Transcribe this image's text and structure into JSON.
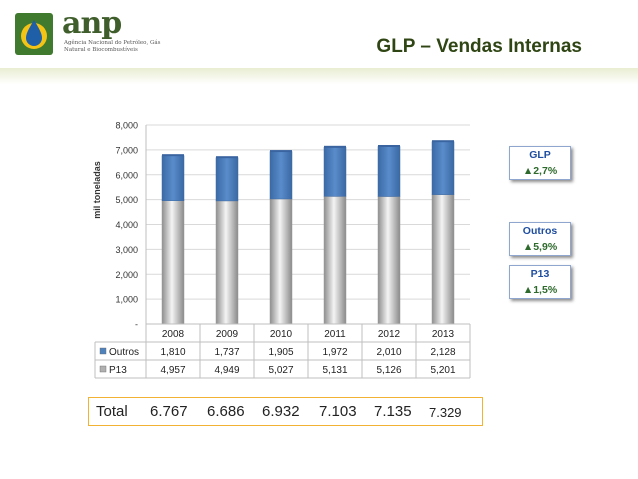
{
  "header": {
    "title": "GLP – Vendas Internas",
    "logo_word": "anp",
    "logo_sub": "Agência Nacional do Petróleo, Gás Natural e Biocombustíveis"
  },
  "colors": {
    "outros": "#4f81bd",
    "p13": "#bfbfbf",
    "title": "#2f4513",
    "accent_border": "#f2b233"
  },
  "chart_data": {
    "type": "bar",
    "stacked": true,
    "ylabel": "mil toneladas",
    "ylim": [
      0,
      8000
    ],
    "yticks": [
      0,
      1000,
      2000,
      3000,
      4000,
      5000,
      6000,
      7000,
      8000
    ],
    "ytick_labels": [
      "-",
      "1,000",
      "2,000",
      "3,000",
      "4,000",
      "5,000",
      "6,000",
      "7,000",
      "8,000"
    ],
    "categories": [
      "2008",
      "2009",
      "2010",
      "2011",
      "2012",
      "2013"
    ],
    "series": [
      {
        "name": "P13",
        "values": [
          4957,
          4949,
          5027,
          5131,
          5126,
          5201
        ],
        "labels": [
          "4,957",
          "4,949",
          "5,027",
          "5,131",
          "5,126",
          "5,201"
        ],
        "color": "#bfbfbf"
      },
      {
        "name": "Outros",
        "values": [
          1810,
          1737,
          1905,
          1972,
          2010,
          2128
        ],
        "labels": [
          "1,810",
          "1,737",
          "1,905",
          "1,972",
          "2,010",
          "2,128"
        ],
        "color": "#4f81bd"
      }
    ],
    "grid": true
  },
  "totals": {
    "label": "Total",
    "values": [
      "6.767",
      "6.686",
      "6.932",
      "7.103",
      "7.135",
      "7.329"
    ]
  },
  "badges": {
    "glp": {
      "title": "GLP",
      "value": "▲2,7%"
    },
    "outros": {
      "title": "Outros",
      "value": "▲5,9%"
    },
    "p13": {
      "title": "P13",
      "value": "▲1,5%"
    }
  }
}
